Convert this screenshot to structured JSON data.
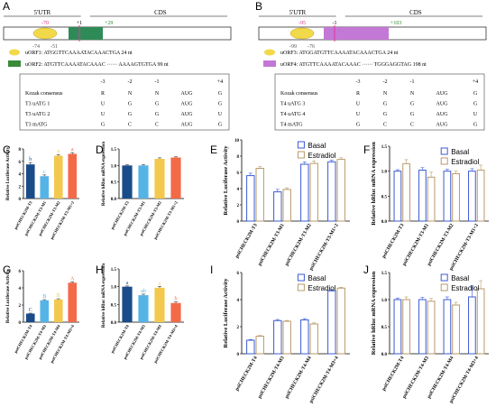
{
  "panel_letters": {
    "A": "A",
    "B": "B",
    "C": "C",
    "D": "D",
    "E": "E",
    "F": "F",
    "G": "G",
    "H": "H",
    "I": "I",
    "J": "J"
  },
  "schematic_A": {
    "utr_label": "5'UTR",
    "cds_label": "CDS",
    "pos_labels": [
      "-70",
      "+1",
      "+29",
      "-74",
      "-51"
    ],
    "uorf_lines": [
      {
        "text": "uORF1: ATGGTTCAAAATACAAACTGA  24 nt",
        "color": "#f2d94a"
      },
      {
        "text": "uORF2: ATGTTCAAAATACAAAC ······ AAAAGTGTGA  99 nt",
        "color": "#3a8a3a"
      }
    ],
    "table_header": [
      "",
      "-3",
      "-2",
      "-1",
      "",
      "+4"
    ],
    "table_rows": [
      [
        "Kozak consensus",
        "R",
        "N",
        "N",
        "AUG",
        "G"
      ],
      [
        "T3 uATG 1",
        "U",
        "G",
        "G",
        "AUG",
        "G"
      ],
      [
        "T3 uATG 2",
        "U",
        "G",
        "G",
        "AUG",
        "U"
      ],
      [
        "T3 mATG",
        "G",
        "C",
        "C",
        "AUG",
        "G"
      ]
    ]
  },
  "schematic_B": {
    "utr_label": "5'UTR",
    "cds_label": "CDS",
    "pos_labels": [
      "-95",
      "-1",
      "+103",
      "-99",
      "-76"
    ],
    "uorf_lines": [
      {
        "text": "uORF3: ATGGATGTTCAAAATACAAACTGA  24 nt",
        "color": "#f2d94a"
      },
      {
        "text": "uORF4: ATGTTCAAAATACAAAC ······ TGGGAGGTAG  198 nt",
        "color": "#c278d4"
      }
    ],
    "table_header": [
      "",
      "-3",
      "-2",
      "-1",
      "",
      "+4"
    ],
    "table_rows": [
      [
        "Kozak consensus",
        "R",
        "N",
        "N",
        "AUG",
        "G"
      ],
      [
        "T4 uATG 3",
        "U",
        "G",
        "G",
        "AUG",
        "G"
      ],
      [
        "T4 uATG 4",
        "U",
        "G",
        "G",
        "AUG",
        "U"
      ],
      [
        "T4 mATG",
        "G",
        "C",
        "C",
        "AUG",
        "G"
      ]
    ]
  },
  "chart_data": [
    {
      "panel": "C",
      "type": "bar",
      "ylabel": "Relative Luciferase Activity",
      "ylim": [
        0,
        8
      ],
      "categories": [
        "psiCHECK2M-T3",
        "psiCHECK2M-T3-M1",
        "psiCHECK2M-T3-M2",
        "psiCHECK2M-T3-M1+2"
      ],
      "values": [
        5.5,
        3.6,
        6.9,
        7.2
      ],
      "errors": [
        0.3,
        0.2,
        0.2,
        0.2
      ],
      "letters": [
        "b",
        "c",
        "a",
        "a"
      ],
      "colors": [
        "#1a4c8a",
        "#55b4e6",
        "#f2c94e",
        "#f26a48"
      ],
      "letter_colors": [
        "#1a4c8a",
        "#55b4e6",
        "#f2c94e",
        "#f26a48"
      ]
    },
    {
      "panel": "D",
      "type": "bar",
      "ylabel": "Relative hRluc mRNA expression",
      "ylim": [
        0,
        1.5
      ],
      "categories": [
        "psiCHECK2M-T3",
        "psiCHECK2M-T3-M1",
        "psiCHECK2M-T3-M2",
        "psiCHECK2M-T3-M1+2"
      ],
      "values": [
        1.0,
        1.0,
        1.2,
        1.24
      ],
      "errors": [
        0.02,
        0.03,
        0.03,
        0.02
      ],
      "colors": [
        "#1a4c8a",
        "#55b4e6",
        "#f2c94e",
        "#f26a48"
      ]
    },
    {
      "panel": "E",
      "type": "bar",
      "ylabel": "Relative Luciferase Activity",
      "ylim": [
        0,
        10
      ],
      "categories": [
        "psiCHECK2M-T3",
        "psiCHECK2M-T3-M1",
        "psiCHECK2M-T3-M2",
        "psiCHECK2M-T3-M1+2"
      ],
      "series": [
        {
          "name": "Basal",
          "values": [
            5.6,
            3.6,
            7.0,
            7.3
          ],
          "errors": [
            0.3,
            0.3,
            0.3,
            0.2
          ]
        },
        {
          "name": "Estradiol",
          "values": [
            6.5,
            3.9,
            7.1,
            7.6
          ],
          "errors": [
            0.2,
            0.2,
            0.3,
            0.2
          ]
        }
      ]
    },
    {
      "panel": "F",
      "type": "bar",
      "ylabel": "Relative hRluc mRNA expression",
      "ylim": [
        0,
        1.5
      ],
      "categories": [
        "psiCHECK2M-T3",
        "psiCHECK2M-T3-M1",
        "psiCHECK2M-T3-M2",
        "psiCHECK2M-T3-M1+2"
      ],
      "series": [
        {
          "name": "Basal",
          "values": [
            1.0,
            1.02,
            1.0,
            1.0
          ],
          "errors": [
            0.03,
            0.05,
            0.04,
            0.05
          ]
        },
        {
          "name": "Estradiol",
          "values": [
            1.15,
            0.88,
            0.95,
            1.02
          ],
          "errors": [
            0.08,
            0.1,
            0.05,
            0.1
          ]
        }
      ]
    },
    {
      "panel": "G",
      "type": "bar",
      "ylabel": "Relative Luciferase Activity",
      "ylim": [
        0,
        6
      ],
      "categories": [
        "psiCHECK2M-T4",
        "psiCHECK2M-T4-M3",
        "psiCHECK2M-T4-M4",
        "psiCHECK2M-T4-M3+4"
      ],
      "values": [
        1.0,
        2.55,
        2.65,
        4.6
      ],
      "errors": [
        0.05,
        0.08,
        0.08,
        0.1
      ],
      "letters": [
        "C",
        "B",
        "B",
        "A"
      ],
      "colors": [
        "#1a4c8a",
        "#55b4e6",
        "#f2c94e",
        "#f26a48"
      ],
      "letter_colors": [
        "#1a4c8a",
        "#55b4e6",
        "#f2c94e",
        "#f26a48"
      ]
    },
    {
      "panel": "H",
      "type": "bar",
      "ylabel": "Relative hRluc mRNA expression",
      "ylim": [
        0,
        1.5
      ],
      "categories": [
        "psiCHECK2M-T4",
        "psiCHECK2M-T4-M3",
        "psiCHECK2M-T4-M4",
        "psiCHECK2M-T4-M3+4"
      ],
      "values": [
        1.0,
        0.76,
        0.97,
        0.54
      ],
      "errors": [
        0.02,
        0.03,
        0.04,
        0.03
      ],
      "letters": [
        "a",
        "ab",
        "a",
        "b"
      ],
      "colors": [
        "#1a4c8a",
        "#55b4e6",
        "#f2c94e",
        "#f26a48"
      ],
      "letter_colors": [
        "#1a4c8a",
        "#55b4e6",
        "#f2c94e",
        "#f26a48"
      ]
    },
    {
      "panel": "I",
      "type": "bar",
      "ylabel": "Relative Luciferase Activity",
      "ylim": [
        0,
        6
      ],
      "categories": [
        "psiCHECK2M-T4",
        "psiCHECK2M-T4-M3",
        "psiCHECK2M-T4-M4",
        "psiCHECK2M-T4-M3+4"
      ],
      "series": [
        {
          "name": "Basal",
          "values": [
            1.0,
            2.45,
            2.5,
            4.65
          ],
          "errors": [
            0.05,
            0.08,
            0.1,
            0.08
          ]
        },
        {
          "name": "Estradiol",
          "values": [
            1.3,
            2.4,
            2.2,
            4.85
          ],
          "errors": [
            0.05,
            0.06,
            0.08,
            0.06
          ]
        }
      ]
    },
    {
      "panel": "J",
      "type": "bar",
      "ylabel": "Relative hRluc mRNA expression",
      "ylim": [
        0,
        1.5
      ],
      "categories": [
        "psiCHECK2M-T4",
        "psiCHECK2M-T4-M3",
        "psiCHECK2M-T4-M4",
        "psiCHECK2M-T4-M3+4"
      ],
      "series": [
        {
          "name": "Basal",
          "values": [
            1.0,
            1.0,
            1.0,
            1.05
          ],
          "errors": [
            0.03,
            0.04,
            0.05,
            0.2
          ]
        },
        {
          "name": "Estradiol",
          "values": [
            1.0,
            0.97,
            0.9,
            1.2
          ],
          "errors": [
            0.05,
            0.05,
            0.05,
            0.15
          ]
        }
      ]
    }
  ],
  "legend_colors": {
    "Basal": "#3b5bd6",
    "Estradiol": "#b89a6a"
  }
}
